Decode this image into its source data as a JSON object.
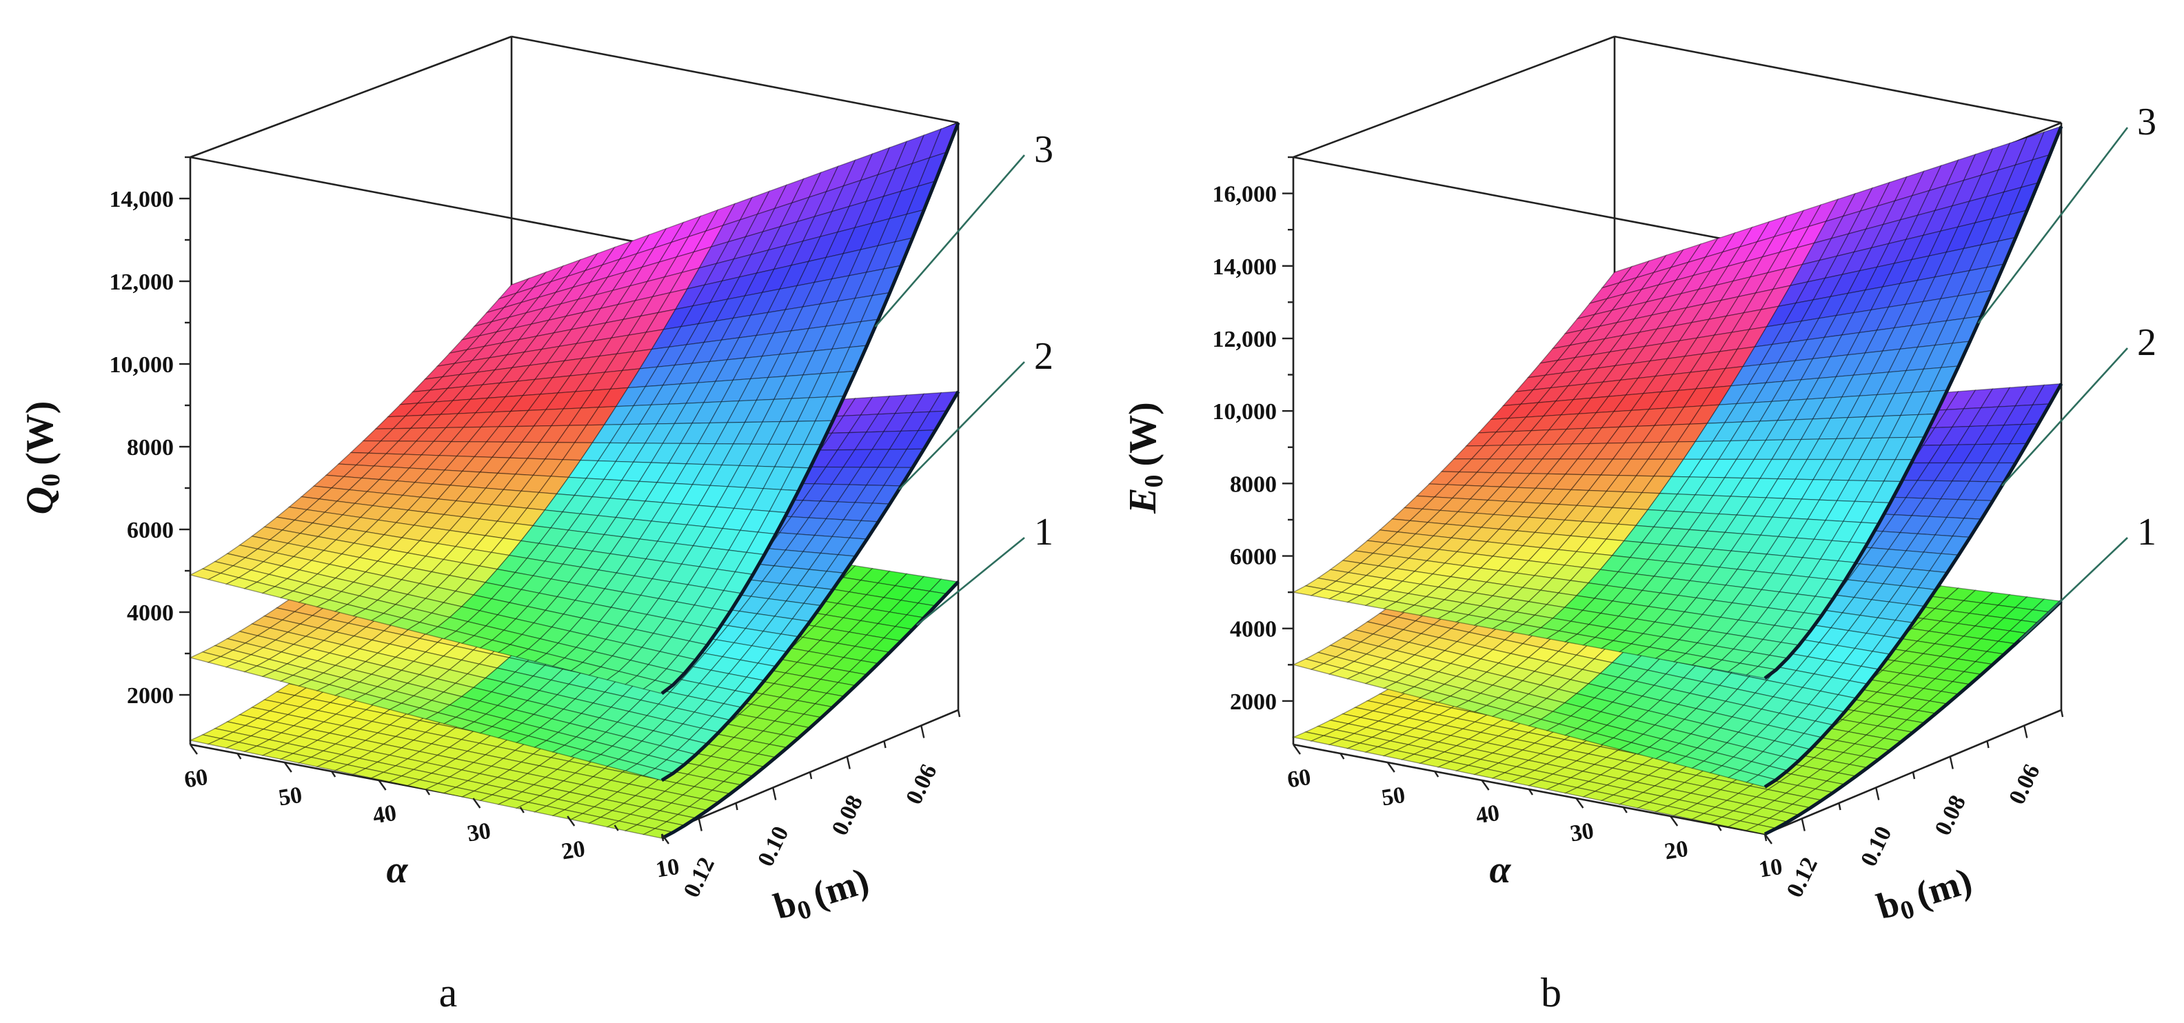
{
  "chart_data": [
    {
      "type": "surface3d",
      "panel_label": "a",
      "zlabel_main": "Q",
      "zlabel_sub": "0",
      "zlabel_unit": "(W)",
      "xlabel": "α",
      "ylabel_main": "b",
      "ylabel_sub": "0",
      "ylabel_unit": "(m)",
      "x_range": [
        10,
        60
      ],
      "y_range": [
        0.05,
        0.13
      ],
      "z_range": [
        800,
        15000
      ],
      "x_ticks": [
        "60",
        "50",
        "40",
        "30",
        "20",
        "10"
      ],
      "y_ticks": [
        "0.12",
        "0.10",
        "0.08",
        "0.06"
      ],
      "z_ticks": [
        "2000",
        "4000",
        "6000",
        "8000",
        "10,000",
        "12,000",
        "14,000"
      ],
      "surfaces": [
        {
          "name": "1",
          "corner_values": {
            "alpha60_b013": 900,
            "alpha10_b013": 700,
            "alpha10_b005": 3900,
            "alpha60_b005": 3500
          }
        },
        {
          "name": "2",
          "corner_values": {
            "alpha60_b013": 2900,
            "alpha10_b013": 2100,
            "alpha10_b005": 8500,
            "alpha60_b005": 5700
          }
        },
        {
          "name": "3",
          "corner_values": {
            "alpha60_b013": 4900,
            "alpha10_b013": 4200,
            "alpha10_b005": 15000,
            "alpha60_b005": 9000
          }
        }
      ]
    },
    {
      "type": "surface3d",
      "panel_label": "b",
      "zlabel_main": "E",
      "zlabel_sub": "0",
      "zlabel_unit": "(W)",
      "xlabel": "α",
      "ylabel_main": "b",
      "ylabel_sub": "0",
      "ylabel_unit": "(m)",
      "x_range": [
        10,
        60
      ],
      "y_range": [
        0.05,
        0.13
      ],
      "z_range": [
        800,
        17000
      ],
      "x_ticks": [
        "60",
        "50",
        "40",
        "30",
        "20",
        "10"
      ],
      "y_ticks": [
        "0.12",
        "0.10",
        "0.08",
        "0.06"
      ],
      "z_ticks": [
        "2000",
        "4000",
        "6000",
        "8000",
        "10,000",
        "12,000",
        "14,000",
        "16,000"
      ],
      "surfaces": [
        {
          "name": "1",
          "corner_values": {
            "alpha60_b013": 1000,
            "alpha10_b013": 800,
            "alpha10_b005": 3800,
            "alpha60_b005": 3000
          }
        },
        {
          "name": "2",
          "corner_values": {
            "alpha60_b013": 3000,
            "alpha10_b013": 2100,
            "alpha10_b005": 9800,
            "alpha60_b005": 6500
          }
        },
        {
          "name": "3",
          "corner_values": {
            "alpha60_b013": 5000,
            "alpha10_b013": 5100,
            "alpha10_b005": 16900,
            "alpha60_b005": 10500
          }
        }
      ]
    }
  ]
}
